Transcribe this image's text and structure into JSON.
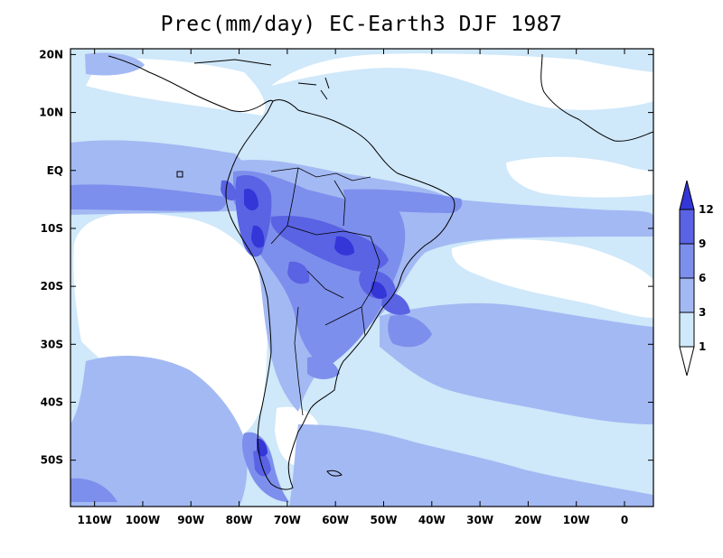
{
  "title": "Prec(mm/day) EC-Earth3 DJF 1987",
  "map": {
    "variable": "Precipitation",
    "units": "mm/day",
    "lon_range": [
      -115,
      6
    ],
    "lat_range": [
      -58,
      21
    ],
    "x_ticks": [
      {
        "lon": -110,
        "label": "110W"
      },
      {
        "lon": -100,
        "label": "100W"
      },
      {
        "lon": -90,
        "label": "90W"
      },
      {
        "lon": -80,
        "label": "80W"
      },
      {
        "lon": -70,
        "label": "70W"
      },
      {
        "lon": -60,
        "label": "60W"
      },
      {
        "lon": -50,
        "label": "50W"
      },
      {
        "lon": -40,
        "label": "40W"
      },
      {
        "lon": -30,
        "label": "30W"
      },
      {
        "lon": -20,
        "label": "20W"
      },
      {
        "lon": -10,
        "label": "10W"
      },
      {
        "lon": 0,
        "label": "0"
      }
    ],
    "y_ticks": [
      {
        "lat": 20,
        "label": "20N"
      },
      {
        "lat": 10,
        "label": "10N"
      },
      {
        "lat": 0,
        "label": "EQ"
      },
      {
        "lat": -10,
        "label": "10S"
      },
      {
        "lat": -20,
        "label": "20S"
      },
      {
        "lat": -30,
        "label": "30S"
      },
      {
        "lat": -40,
        "label": "40S"
      },
      {
        "lat": -50,
        "label": "50S"
      }
    ],
    "levels": [
      {
        "label": "1",
        "value": 1,
        "color": "#cfe8fa"
      },
      {
        "label": "3",
        "value": 3,
        "color": "#a3b9f3"
      },
      {
        "label": "6",
        "value": 6,
        "color": "#7d8fec"
      },
      {
        "label": "9",
        "value": 9,
        "color": "#5a63e3"
      },
      {
        "label": "12",
        "value": 12,
        "color": "#3436d8"
      }
    ],
    "colors": {
      "below_min": "#ffffff",
      "land_line": "#000000"
    }
  }
}
